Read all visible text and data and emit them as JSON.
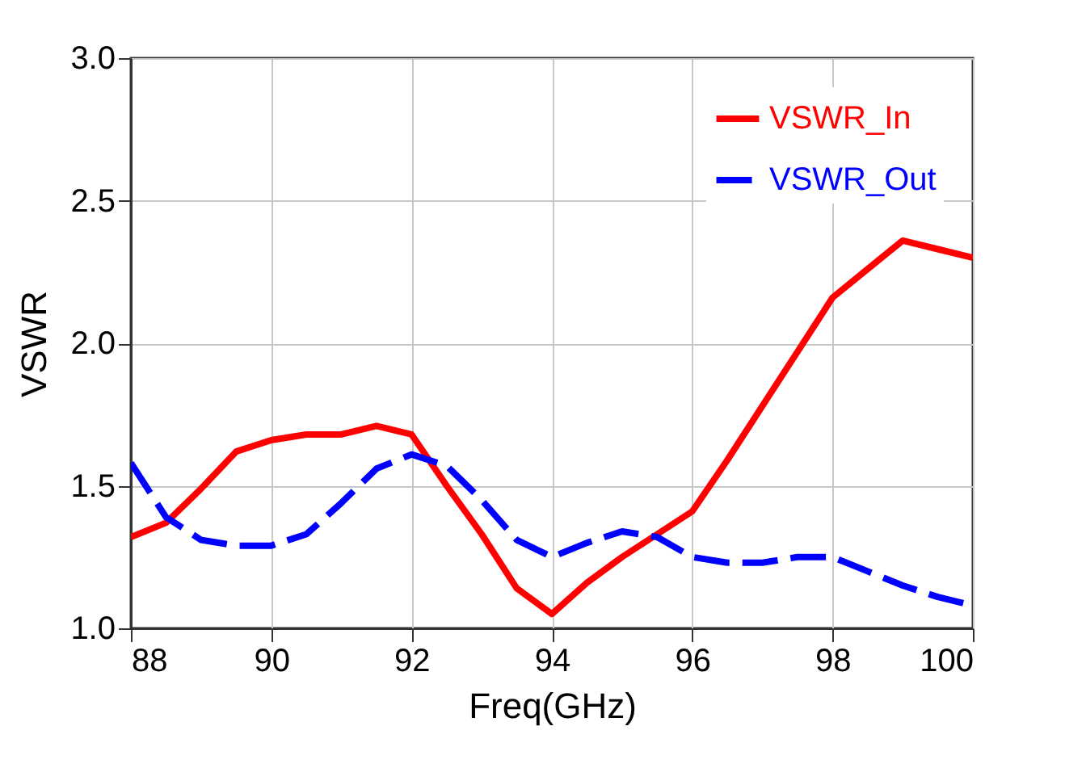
{
  "chart_data": {
    "type": "line",
    "xlabel": "Freq(GHz)",
    "ylabel": "VSWR",
    "x": [
      88,
      88.5,
      89,
      89.5,
      90,
      90.5,
      91,
      91.5,
      92,
      92.5,
      93,
      93.5,
      94,
      94.5,
      95,
      95.5,
      96,
      96.5,
      97,
      97.5,
      98,
      98.5,
      99,
      99.5,
      100
    ],
    "series": [
      {
        "name": "VSWR_In",
        "color": "#ff0000",
        "line_style": "solid",
        "values": [
          1.32,
          1.37,
          1.49,
          1.62,
          1.66,
          1.68,
          1.68,
          1.71,
          1.68,
          1.5,
          1.33,
          1.14,
          1.05,
          1.16,
          1.25,
          1.33,
          1.41,
          1.59,
          1.78,
          1.97,
          2.16,
          2.26,
          2.36,
          2.33,
          2.3
        ]
      },
      {
        "name": "VSWR_Out",
        "color": "#0000ff",
        "line_style": "dashed",
        "values": [
          1.58,
          1.39,
          1.31,
          1.29,
          1.29,
          1.33,
          1.44,
          1.56,
          1.61,
          1.57,
          1.45,
          1.31,
          1.25,
          1.3,
          1.34,
          1.32,
          1.25,
          1.23,
          1.23,
          1.25,
          1.25,
          1.2,
          1.15,
          1.11,
          1.08
        ]
      }
    ],
    "xlim": [
      88,
      100
    ],
    "xticks": [
      88,
      90,
      92,
      94,
      96,
      98,
      100
    ],
    "ylim": [
      1.0,
      3.0
    ],
    "yticks": [
      {
        "value": 1.0,
        "label": "1.0"
      },
      {
        "value": 1.5,
        "label": "1.5"
      },
      {
        "value": 2.0,
        "label": "2.0"
      },
      {
        "value": 2.5,
        "label": "2.5"
      },
      {
        "value": 3.0,
        "label": "3.0"
      }
    ],
    "grid": true,
    "legend": "top right",
    "marker": "none"
  }
}
